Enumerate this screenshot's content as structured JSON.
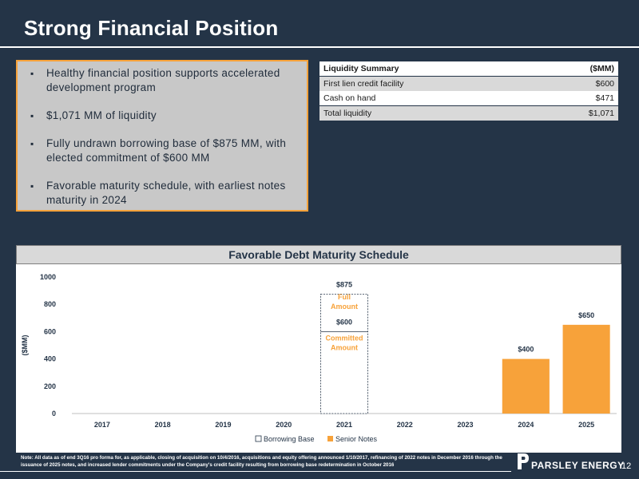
{
  "header": {
    "title": "Strong Financial Position"
  },
  "bullets": [
    "Healthy financial position supports accelerated development program",
    "$1,071 MM of liquidity",
    "Fully undrawn borrowing base of $875 MM, with elected commitment of $600 MM",
    "Favorable maturity schedule, with earliest notes maturity in 2024"
  ],
  "liquidity_table": {
    "header_label": "Liquidity Summary",
    "header_unit": "($MM)",
    "rows": [
      {
        "label": "First lien credit facility",
        "value": "$600"
      },
      {
        "label": "Cash on hand",
        "value": "$471"
      },
      {
        "label": "Total liquidity",
        "value": "$1,071"
      }
    ]
  },
  "chart_data": {
    "type": "bar",
    "title": "Favorable Debt Maturity Schedule",
    "ylabel": "($MM)",
    "xlabel": "",
    "ylim": [
      0,
      1000
    ],
    "yticks": [
      0,
      200,
      400,
      600,
      800,
      1000
    ],
    "categories": [
      "2017",
      "2018",
      "2019",
      "2020",
      "2021",
      "2022",
      "2023",
      "2024",
      "2025"
    ],
    "series": [
      {
        "name": "Borrowing Base",
        "color": "#ffffff",
        "values": [
          0,
          0,
          0,
          0,
          875,
          0,
          0,
          0,
          0
        ]
      },
      {
        "name": "Senior Notes",
        "color": "#f7a23a",
        "values": [
          0,
          0,
          0,
          0,
          0,
          0,
          0,
          400,
          650
        ]
      }
    ],
    "data_labels": [
      {
        "category": "2021",
        "value": 875,
        "text": "$875"
      },
      {
        "category": "2021",
        "value": 600,
        "text": "$600"
      },
      {
        "category": "2024",
        "value": 400,
        "text": "$400"
      },
      {
        "category": "2025",
        "value": 650,
        "text": "$650"
      }
    ],
    "annotations": [
      {
        "category": "2021",
        "lines": [
          "Full",
          "Amount"
        ],
        "value": 800
      },
      {
        "category": "2021",
        "lines": [
          "Committed",
          "Amount"
        ],
        "value": 500
      }
    ],
    "committed_value": 600,
    "legend_position": "bottom"
  },
  "footnote": "Note: All data as of end 3Q16 pro forma for, as applicable, closing of acquisition on 10/4/2016, acquisitions and equity offering announced 1/10/2017, refinancing of 2022 notes in December 2016 through the issuance of 2025 notes, and increased lender commitments under the Company's credit facility resulting from borrowing base redetermination in October 2016",
  "logo": {
    "text": "PARSLEY ENERGY"
  },
  "page_number": "12",
  "colors": {
    "accent": "#f7a23a",
    "background": "#243447",
    "text_dark": "#243447"
  }
}
